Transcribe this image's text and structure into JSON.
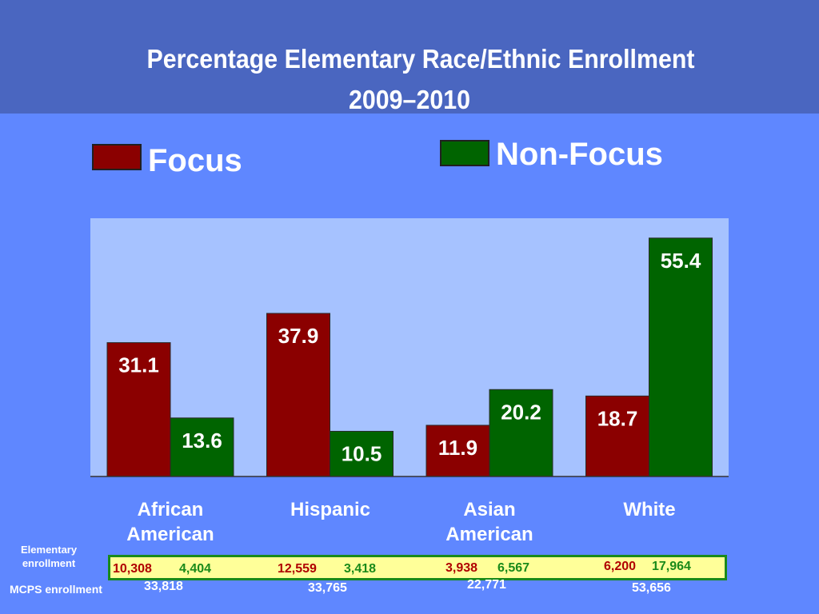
{
  "title": {
    "line1": "Percentage Elementary Race/Ethnic Enrollment",
    "line2": "2009–2010"
  },
  "colors": {
    "focus": "#8b0000",
    "non_focus": "#006400",
    "plot_bg": "#a6c2ff",
    "page_bg": "#5f87ff",
    "title_bg": "#4a66c0"
  },
  "legend": {
    "focus": "Focus",
    "non_focus": "Non-Focus"
  },
  "chart_data": {
    "type": "bar",
    "categories": [
      "African American",
      "Hispanic",
      "Asian American",
      "White"
    ],
    "series": [
      {
        "name": "Focus",
        "values": [
          31.1,
          37.9,
          11.9,
          18.7
        ]
      },
      {
        "name": "Non-Focus",
        "values": [
          13.6,
          10.5,
          20.2,
          55.4
        ]
      }
    ],
    "value_labels": {
      "Focus": [
        "31.1",
        "37.9",
        "11.9",
        "18.7"
      ],
      "Non-Focus": [
        "13.6",
        "10.5",
        "20.2",
        "55.4"
      ]
    },
    "ylim": [
      0,
      60
    ],
    "xlabel": "",
    "ylabel": "",
    "legend_position": "top",
    "grid": false
  },
  "category_labels": [
    [
      "African",
      "American"
    ],
    [
      "Hispanic",
      ""
    ],
    [
      "Asian",
      "American"
    ],
    [
      "White",
      ""
    ]
  ],
  "enrollment": {
    "label_line1": "Elementary",
    "label_line2": "enrollment",
    "focus": [
      "10,308",
      "12,559",
      "3,938",
      "6,200"
    ],
    "non_focus": [
      "4,404",
      "3,418",
      "6,567",
      "17,964"
    ]
  },
  "mcps": {
    "label": "MCPS enrollment",
    "values": [
      "33,818",
      "33,765",
      "22,771",
      "53,656"
    ]
  }
}
